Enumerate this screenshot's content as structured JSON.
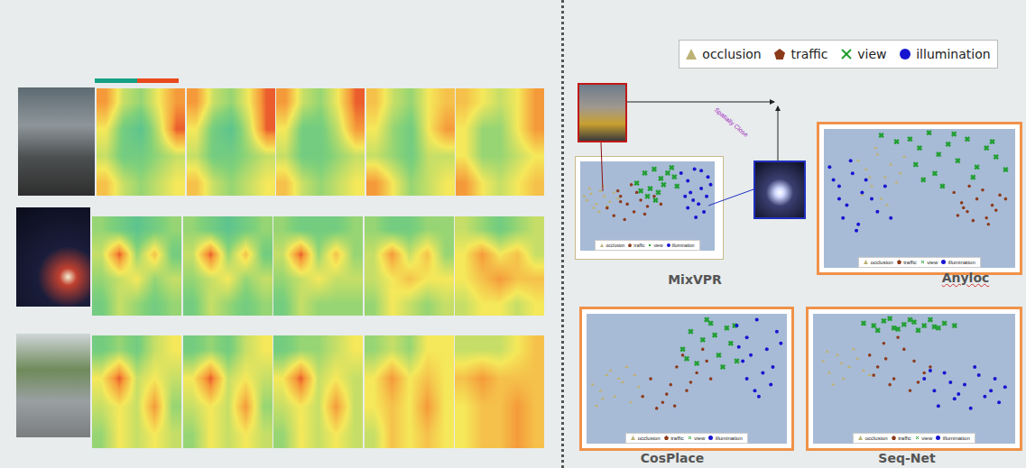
{
  "heatmap_figure": {
    "type": "heatmap",
    "zlim": [
      0,
      1
    ],
    "rows": [
      [
        [
          [
            0.8,
            0.5,
            0.4,
            0.6,
            0.8
          ],
          [
            0.6,
            0.3,
            0.2,
            0.5,
            0.9
          ],
          [
            0.5,
            0.3,
            0.3,
            0.4,
            0.5
          ],
          [
            0.7,
            0.5,
            0.4,
            0.5,
            0.6
          ]
        ],
        [
          [
            0.8,
            0.5,
            0.4,
            0.6,
            0.9
          ],
          [
            0.6,
            0.3,
            0.2,
            0.5,
            0.9
          ],
          [
            0.5,
            0.3,
            0.3,
            0.4,
            0.5
          ],
          [
            0.7,
            0.5,
            0.4,
            0.5,
            0.6
          ]
        ],
        [
          [
            0.8,
            0.5,
            0.4,
            0.6,
            0.9
          ],
          [
            0.6,
            0.3,
            0.3,
            0.5,
            0.8
          ],
          [
            0.5,
            0.3,
            0.3,
            0.4,
            0.5
          ],
          [
            0.7,
            0.5,
            0.4,
            0.5,
            0.6
          ]
        ],
        [
          [
            0.7,
            0.5,
            0.4,
            0.6,
            0.7
          ],
          [
            0.6,
            0.4,
            0.3,
            0.6,
            0.8
          ],
          [
            0.5,
            0.4,
            0.3,
            0.5,
            0.5
          ],
          [
            0.8,
            0.6,
            0.4,
            0.5,
            0.6
          ]
        ],
        [
          [
            0.7,
            0.6,
            0.5,
            0.6,
            0.8
          ],
          [
            0.6,
            0.4,
            0.4,
            0.6,
            0.8
          ],
          [
            0.6,
            0.4,
            0.4,
            0.5,
            0.6
          ],
          [
            0.8,
            0.6,
            0.5,
            0.6,
            0.7
          ]
        ]
      ],
      [
        [
          [
            0.4,
            0.3,
            0.2,
            0.3,
            0.4
          ],
          [
            0.5,
            0.9,
            0.4,
            0.7,
            0.3
          ],
          [
            0.4,
            0.5,
            0.6,
            0.4,
            0.5
          ],
          [
            0.3,
            0.5,
            0.4,
            0.3,
            0.4
          ]
        ],
        [
          [
            0.4,
            0.3,
            0.2,
            0.3,
            0.4
          ],
          [
            0.5,
            0.9,
            0.4,
            0.7,
            0.3
          ],
          [
            0.4,
            0.5,
            0.6,
            0.4,
            0.5
          ],
          [
            0.3,
            0.5,
            0.4,
            0.3,
            0.4
          ]
        ],
        [
          [
            0.4,
            0.3,
            0.3,
            0.3,
            0.4
          ],
          [
            0.5,
            0.9,
            0.4,
            0.7,
            0.4
          ],
          [
            0.4,
            0.5,
            0.6,
            0.5,
            0.5
          ],
          [
            0.3,
            0.5,
            0.4,
            0.4,
            0.4
          ]
        ],
        [
          [
            0.4,
            0.3,
            0.3,
            0.4,
            0.4
          ],
          [
            0.5,
            0.8,
            0.5,
            0.7,
            0.4
          ],
          [
            0.5,
            0.6,
            0.7,
            0.6,
            0.6
          ],
          [
            0.4,
            0.6,
            0.5,
            0.4,
            0.5
          ]
        ],
        [
          [
            0.5,
            0.4,
            0.3,
            0.4,
            0.5
          ],
          [
            0.6,
            0.8,
            0.6,
            0.7,
            0.5
          ],
          [
            0.6,
            0.7,
            0.8,
            0.7,
            0.7
          ],
          [
            0.5,
            0.6,
            0.6,
            0.5,
            0.6
          ]
        ]
      ],
      [
        [
          [
            0.3,
            0.4,
            0.3,
            0.5,
            0.6
          ],
          [
            0.6,
            0.9,
            0.5,
            0.6,
            0.5
          ],
          [
            0.5,
            0.6,
            0.5,
            0.8,
            0.4
          ],
          [
            0.4,
            0.6,
            0.5,
            0.6,
            0.5
          ]
        ],
        [
          [
            0.3,
            0.4,
            0.3,
            0.5,
            0.6
          ],
          [
            0.6,
            0.9,
            0.5,
            0.6,
            0.5
          ],
          [
            0.5,
            0.6,
            0.5,
            0.8,
            0.4
          ],
          [
            0.4,
            0.6,
            0.5,
            0.6,
            0.5
          ]
        ],
        [
          [
            0.3,
            0.4,
            0.4,
            0.5,
            0.6
          ],
          [
            0.6,
            0.9,
            0.5,
            0.6,
            0.5
          ],
          [
            0.5,
            0.6,
            0.5,
            0.8,
            0.5
          ],
          [
            0.4,
            0.6,
            0.5,
            0.6,
            0.5
          ]
        ],
        [
          [
            0.4,
            0.5,
            0.4,
            0.6,
            0.6
          ],
          [
            0.6,
            0.8,
            0.6,
            0.7,
            0.6
          ],
          [
            0.6,
            0.7,
            0.6,
            0.8,
            0.6
          ],
          [
            0.5,
            0.7,
            0.6,
            0.7,
            0.6
          ]
        ],
        [
          [
            0.5,
            0.5,
            0.5,
            0.6,
            0.7
          ],
          [
            0.7,
            0.8,
            0.7,
            0.7,
            0.7
          ],
          [
            0.6,
            0.7,
            0.7,
            0.8,
            0.7
          ],
          [
            0.6,
            0.7,
            0.7,
            0.8,
            0.7
          ]
        ]
      ]
    ]
  },
  "arrow_label": "Spatially Close",
  "chart_data": [
    {
      "type": "scatter",
      "title": "MixVPR",
      "xlim": [
        0,
        100
      ],
      "ylim": [
        0,
        100
      ],
      "tick_labels": false,
      "series": [
        {
          "name": "occlusion",
          "color": "#bdb276",
          "marker": "triangle-up",
          "x": [
            5,
            8,
            12,
            15,
            18,
            10,
            22,
            25,
            7,
            14,
            20,
            28,
            3,
            17
          ],
          "y": [
            50,
            58,
            45,
            62,
            55,
            40,
            48,
            60,
            65,
            35,
            42,
            52,
            55,
            68
          ]
        },
        {
          "name": "traffic",
          "color": "#8b3a1a",
          "marker": "pentagon",
          "x": [
            20,
            25,
            30,
            35,
            28,
            40,
            45,
            33,
            38,
            50,
            55,
            42,
            48,
            30,
            60
          ],
          "y": [
            40,
            30,
            55,
            45,
            62,
            35,
            50,
            25,
            70,
            42,
            55,
            60,
            32,
            48,
            45
          ]
        },
        {
          "name": "view",
          "color": "#1f9e2f",
          "marker": "x",
          "x": [
            42,
            48,
            52,
            55,
            60,
            58,
            65,
            50,
            62,
            70,
            45,
            68,
            72,
            56
          ],
          "y": [
            72,
            85,
            65,
            90,
            78,
            60,
            85,
            55,
            70,
            80,
            62,
            92,
            68,
            50
          ]
        },
        {
          "name": "illumination",
          "color": "#1515d0",
          "marker": "circle",
          "x": [
            75,
            80,
            85,
            90,
            95,
            78,
            88,
            92,
            82,
            86,
            97,
            80,
            90,
            84,
            94
          ],
          "y": [
            85,
            75,
            90,
            65,
            80,
            55,
            45,
            35,
            60,
            28,
            70,
            40,
            88,
            50,
            55
          ]
        }
      ]
    },
    {
      "type": "scatter",
      "title": "Anyloc",
      "xlim": [
        0,
        100
      ],
      "ylim": [
        0,
        100
      ],
      "tick_labels": false,
      "series": [
        {
          "name": "occlusion",
          "color": "#bdb276",
          "marker": "triangle-up",
          "x": [
            18,
            22,
            28,
            32,
            25,
            35,
            40,
            20,
            30,
            38,
            27,
            42,
            33,
            24
          ],
          "y": [
            75,
            68,
            80,
            62,
            55,
            72,
            65,
            48,
            45,
            58,
            85,
            78,
            40,
            62
          ]
        },
        {
          "name": "traffic",
          "color": "#8b3a1a",
          "marker": "pentagon",
          "x": [
            68,
            72,
            75,
            80,
            85,
            88,
            92,
            78,
            83,
            70,
            90,
            76,
            86,
            95,
            73
          ],
          "y": [
            50,
            42,
            35,
            45,
            30,
            40,
            48,
            28,
            52,
            32,
            36,
            55,
            25,
            45,
            38
          ]
        },
        {
          "name": "view",
          "color": "#1f9e2f",
          "marker": "x",
          "x": [
            30,
            38,
            45,
            50,
            55,
            60,
            65,
            70,
            75,
            80,
            85,
            90,
            48,
            58,
            68,
            78,
            88,
            52,
            62,
            95
          ],
          "y": [
            95,
            90,
            92,
            85,
            97,
            80,
            88,
            75,
            92,
            70,
            85,
            78,
            72,
            65,
            96,
            62,
            90,
            60,
            55,
            68
          ]
        },
        {
          "name": "illumination",
          "color": "#1515d0",
          "marker": "circle",
          "x": [
            3,
            8,
            12,
            15,
            20,
            25,
            10,
            18,
            28,
            5,
            14,
            22,
            32,
            8,
            17,
            35
          ],
          "y": [
            70,
            55,
            40,
            65,
            50,
            45,
            30,
            25,
            35,
            60,
            75,
            60,
            55,
            45,
            20,
            30
          ]
        }
      ]
    },
    {
      "type": "scatter",
      "title": "CosPlace",
      "xlim": [
        0,
        100
      ],
      "ylim": [
        0,
        100
      ],
      "tick_labels": false,
      "series": [
        {
          "name": "occlusion",
          "color": "#bdb276",
          "marker": "triangle-up",
          "x": [
            3,
            7,
            10,
            14,
            18,
            22,
            26,
            12,
            20,
            8,
            28,
            16,
            24,
            5
          ],
          "y": [
            40,
            35,
            48,
            30,
            42,
            25,
            38,
            52,
            55,
            28,
            30,
            45,
            48,
            22
          ]
        },
        {
          "name": "traffic",
          "color": "#8b3a1a",
          "marker": "pentagon",
          "x": [
            28,
            32,
            38,
            42,
            45,
            50,
            55,
            48,
            60,
            35,
            52,
            40,
            58,
            62,
            44
          ],
          "y": [
            30,
            45,
            25,
            40,
            55,
            35,
            50,
            65,
            60,
            20,
            42,
            32,
            70,
            45,
            22
          ]
        },
        {
          "name": "view",
          "color": "#1f9e2f",
          "marker": "x",
          "x": [
            48,
            52,
            58,
            62,
            66,
            70,
            55,
            60,
            72,
            75,
            64,
            50,
            68,
            74
          ],
          "y": [
            70,
            85,
            78,
            92,
            65,
            88,
            58,
            95,
            75,
            60,
            82,
            62,
            55,
            90
          ]
        },
        {
          "name": "illumination",
          "color": "#1515d0",
          "marker": "circle",
          "x": [
            75,
            80,
            85,
            90,
            95,
            78,
            88,
            92,
            82,
            86,
            97,
            80,
            93,
            84,
            76
          ],
          "y": [
            90,
            80,
            95,
            70,
            85,
            60,
            50,
            40,
            65,
            30,
            75,
            45,
            55,
            35,
            72
          ]
        }
      ]
    },
    {
      "type": "scatter",
      "title": "Seq-Net",
      "xlim": [
        0,
        100
      ],
      "ylim": [
        0,
        100
      ],
      "tick_labels": false,
      "series": [
        {
          "name": "occlusion",
          "color": "#bdb276",
          "marker": "triangle-up",
          "x": [
            5,
            8,
            12,
            15,
            18,
            22,
            10,
            25,
            20,
            14,
            28,
            7
          ],
          "y": [
            60,
            50,
            65,
            45,
            55,
            62,
            40,
            52,
            70,
            58,
            48,
            68
          ]
        },
        {
          "name": "traffic",
          "color": "#8b3a1a",
          "marker": "pentagon",
          "x": [
            28,
            32,
            35,
            40,
            45,
            50,
            38,
            55,
            42,
            48,
            30,
            58,
            36,
            52
          ],
          "y": [
            65,
            55,
            75,
            45,
            70,
            60,
            40,
            50,
            80,
            35,
            48,
            55,
            62,
            42
          ]
        },
        {
          "name": "view",
          "color": "#1f9e2f",
          "marker": "x",
          "x": [
            25,
            30,
            35,
            40,
            45,
            50,
            55,
            60,
            65,
            70,
            32,
            42,
            52,
            62,
            38,
            48,
            58
          ],
          "y": [
            92,
            90,
            94,
            88,
            91,
            93,
            90,
            89,
            92,
            90,
            86,
            87,
            86,
            88,
            96,
            95,
            95
          ]
        },
        {
          "name": "illumination",
          "color": "#1515d0",
          "marker": "circle",
          "x": [
            55,
            60,
            65,
            70,
            75,
            80,
            85,
            90,
            95,
            62,
            72,
            82,
            92,
            68,
            78,
            88,
            58
          ],
          "y": [
            45,
            35,
            50,
            28,
            40,
            55,
            30,
            45,
            38,
            22,
            32,
            48,
            25,
            42,
            20,
            35,
            52
          ]
        }
      ]
    }
  ]
}
